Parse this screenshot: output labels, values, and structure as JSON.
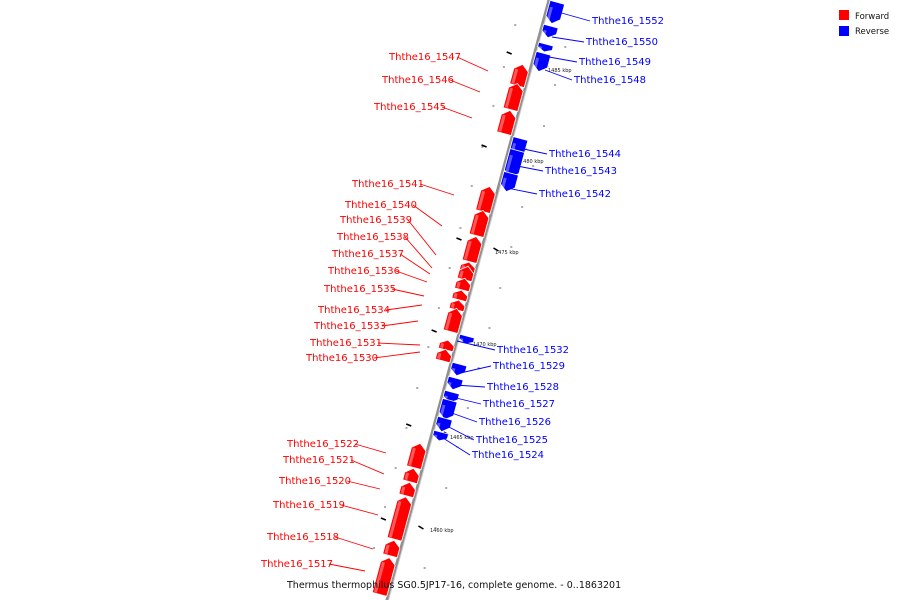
{
  "caption": "Thermus thermophilus SG0.5JP17-16, complete genome. - 0..1863201",
  "legend": [
    {
      "label": "Forward",
      "color": "#ff0000"
    },
    {
      "label": "Reverse",
      "color": "#0000ff"
    }
  ],
  "colors": {
    "forward": "#ff0000",
    "reverse": "#0000ff",
    "backbone": "#909090"
  },
  "scale_labels": [
    "1485 kbp",
    "1480 kbp",
    "1475 kbp",
    "1470 kbp",
    "1465 kbp",
    "1460 kbp"
  ],
  "genes": [
    {
      "name": "Ththe16_1552",
      "strand": "reverse"
    },
    {
      "name": "Ththe16_1550",
      "strand": "reverse"
    },
    {
      "name": "Ththe16_1549",
      "strand": "reverse"
    },
    {
      "name": "Ththe16_1548",
      "strand": "reverse"
    },
    {
      "name": "Ththe16_1547",
      "strand": "forward"
    },
    {
      "name": "Ththe16_1546",
      "strand": "forward"
    },
    {
      "name": "Ththe16_1545",
      "strand": "forward"
    },
    {
      "name": "Ththe16_1544",
      "strand": "reverse"
    },
    {
      "name": "Ththe16_1543",
      "strand": "reverse"
    },
    {
      "name": "Ththe16_1542",
      "strand": "reverse"
    },
    {
      "name": "Ththe16_1541",
      "strand": "forward"
    },
    {
      "name": "Ththe16_1540",
      "strand": "forward"
    },
    {
      "name": "Ththe16_1539",
      "strand": "forward"
    },
    {
      "name": "Ththe16_1538",
      "strand": "forward"
    },
    {
      "name": "Ththe16_1537",
      "strand": "forward"
    },
    {
      "name": "Ththe16_1536",
      "strand": "forward"
    },
    {
      "name": "Ththe16_1535",
      "strand": "forward"
    },
    {
      "name": "Ththe16_1534",
      "strand": "forward"
    },
    {
      "name": "Ththe16_1533",
      "strand": "forward"
    },
    {
      "name": "Ththe16_1532",
      "strand": "reverse"
    },
    {
      "name": "Ththe16_1531",
      "strand": "forward"
    },
    {
      "name": "Ththe16_1530",
      "strand": "forward"
    },
    {
      "name": "Ththe16_1529",
      "strand": "reverse"
    },
    {
      "name": "Ththe16_1528",
      "strand": "reverse"
    },
    {
      "name": "Ththe16_1527",
      "strand": "reverse"
    },
    {
      "name": "Ththe16_1526",
      "strand": "reverse"
    },
    {
      "name": "Ththe16_1525",
      "strand": "reverse"
    },
    {
      "name": "Ththe16_1524",
      "strand": "reverse"
    },
    {
      "name": "Ththe16_1522",
      "strand": "forward"
    },
    {
      "name": "Ththe16_1521",
      "strand": "forward"
    },
    {
      "name": "Ththe16_1520",
      "strand": "forward"
    },
    {
      "name": "Ththe16_1519",
      "strand": "forward"
    },
    {
      "name": "Ththe16_1518",
      "strand": "forward"
    },
    {
      "name": "Ththe16_1517",
      "strand": "forward"
    }
  ]
}
